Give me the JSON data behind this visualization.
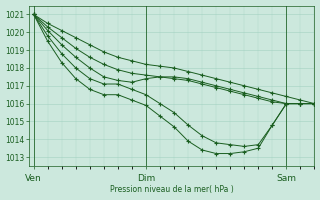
{
  "bg_color": "#cce8dd",
  "line_color": "#1a5e20",
  "grid_color": "#99ccbb",
  "xlabel": "Pression niveau de la mer( hPa )",
  "xtick_labels": [
    "Ven",
    "Dim",
    "Sam"
  ],
  "xtick_positions": [
    0,
    48,
    108
  ],
  "ylim": [
    1012.5,
    1021.5
  ],
  "xlim": [
    -2,
    120
  ],
  "yticks": [
    1013,
    1014,
    1015,
    1016,
    1017,
    1018,
    1019,
    1020,
    1021
  ],
  "vlines": [
    0,
    48,
    108
  ],
  "series": [
    {
      "x": [
        0,
        6,
        12,
        18,
        24,
        30,
        36,
        42,
        48,
        54,
        60,
        66,
        72,
        78,
        84,
        90,
        96,
        102,
        108,
        114,
        120
      ],
      "y": [
        1021.0,
        1020.5,
        1020.1,
        1019.7,
        1019.3,
        1018.9,
        1018.6,
        1018.4,
        1018.2,
        1018.1,
        1018.0,
        1017.8,
        1017.6,
        1017.4,
        1017.2,
        1017.0,
        1016.8,
        1016.6,
        1016.4,
        1016.2,
        1016.0
      ]
    },
    {
      "x": [
        0,
        6,
        12,
        18,
        24,
        30,
        36,
        42,
        48,
        54,
        60,
        66,
        72,
        78,
        84,
        90,
        96,
        102,
        108,
        114,
        120
      ],
      "y": [
        1021.0,
        1020.3,
        1019.7,
        1019.1,
        1018.6,
        1018.2,
        1017.9,
        1017.7,
        1017.6,
        1017.5,
        1017.4,
        1017.3,
        1017.1,
        1016.9,
        1016.7,
        1016.5,
        1016.3,
        1016.1,
        1016.0,
        1016.0,
        1016.0
      ]
    },
    {
      "x": [
        0,
        6,
        12,
        18,
        24,
        30,
        36,
        42,
        48,
        54,
        60,
        66,
        72,
        78,
        84,
        90,
        96,
        102,
        108,
        114,
        120
      ],
      "y": [
        1021.0,
        1020.1,
        1019.3,
        1018.6,
        1018.0,
        1017.5,
        1017.3,
        1017.2,
        1017.4,
        1017.5,
        1017.5,
        1017.4,
        1017.2,
        1017.0,
        1016.8,
        1016.6,
        1016.4,
        1016.2,
        1016.0,
        1016.0,
        1016.0
      ]
    },
    {
      "x": [
        0,
        6,
        12,
        18,
        24,
        30,
        36,
        42,
        48,
        54,
        60,
        66,
        72,
        78,
        84,
        90,
        96,
        102,
        108,
        114,
        120
      ],
      "y": [
        1021.0,
        1019.8,
        1018.8,
        1018.0,
        1017.4,
        1017.1,
        1017.1,
        1016.8,
        1016.5,
        1016.0,
        1015.5,
        1014.8,
        1014.2,
        1013.8,
        1013.7,
        1013.6,
        1013.7,
        1014.8,
        1016.0,
        1016.0,
        1016.0
      ]
    },
    {
      "x": [
        0,
        6,
        12,
        18,
        24,
        30,
        36,
        42,
        48,
        54,
        60,
        66,
        72,
        78,
        84,
        90,
        96,
        102,
        108,
        114,
        120
      ],
      "y": [
        1021.0,
        1019.5,
        1018.3,
        1017.4,
        1016.8,
        1016.5,
        1016.5,
        1016.2,
        1015.9,
        1015.3,
        1014.7,
        1013.9,
        1013.4,
        1013.2,
        1013.2,
        1013.3,
        1013.5,
        1014.8,
        1016.0,
        1016.0,
        1016.0
      ]
    }
  ]
}
